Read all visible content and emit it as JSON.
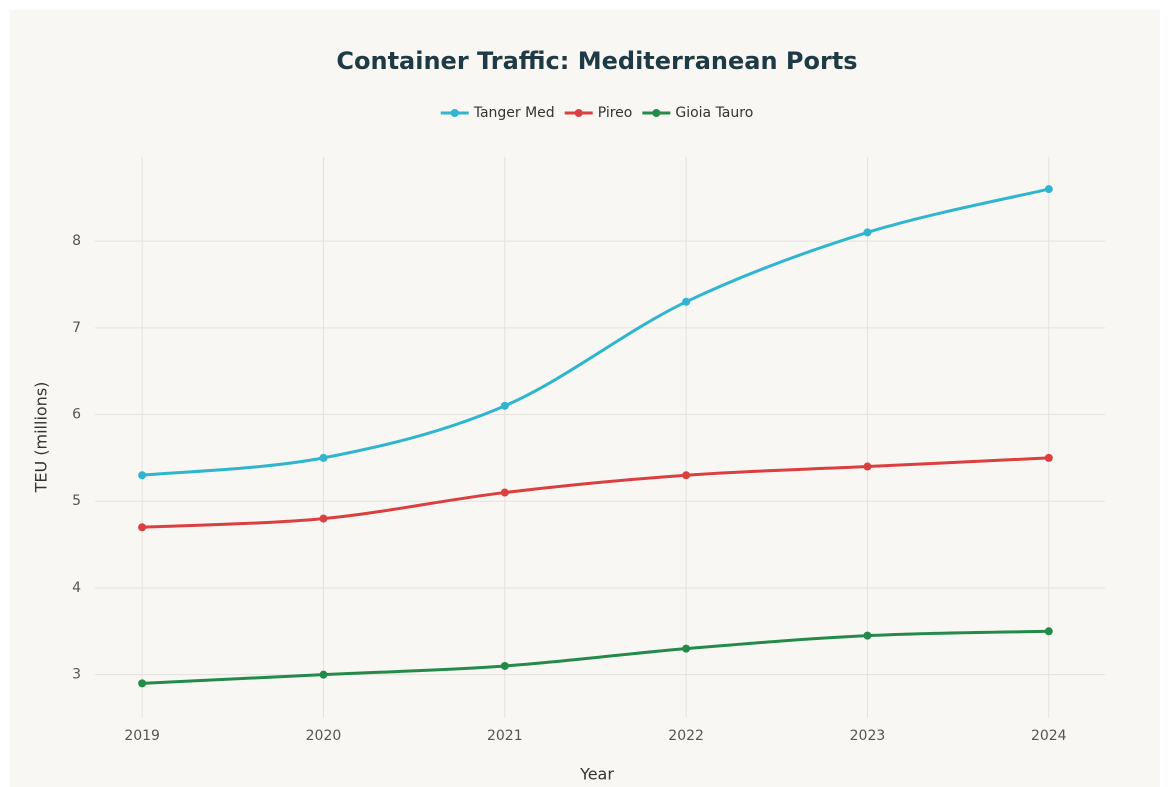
{
  "chart_data": {
    "type": "line",
    "title": "Container Traffic: Mediterranean Ports",
    "x_label": "Year",
    "y_label": "TEU (millions)",
    "x": [
      2019,
      2020,
      2021,
      2022,
      2023,
      2024
    ],
    "xlim": [
      2018.74,
      2024.31
    ],
    "xticks": [
      2019,
      2020,
      2021,
      2022,
      2023,
      2024
    ],
    "ylim": [
      2.5,
      8.97
    ],
    "yticks": [
      3,
      4,
      5,
      6,
      7,
      8
    ],
    "grid": true,
    "legend": "top",
    "series": [
      {
        "name": "Tanger Med",
        "color": "#2fb5d0",
        "values": [
          5.3,
          5.5,
          6.1,
          7.3,
          8.1,
          8.6
        ]
      },
      {
        "name": "Pireo",
        "color": "#db3f3f",
        "values": [
          4.7,
          4.8,
          5.1,
          5.3,
          5.4,
          5.5
        ]
      },
      {
        "name": "Gioia Tauro",
        "color": "#238a4a",
        "values": [
          2.9,
          3.0,
          3.1,
          3.3,
          3.45,
          3.5
        ]
      }
    ]
  }
}
